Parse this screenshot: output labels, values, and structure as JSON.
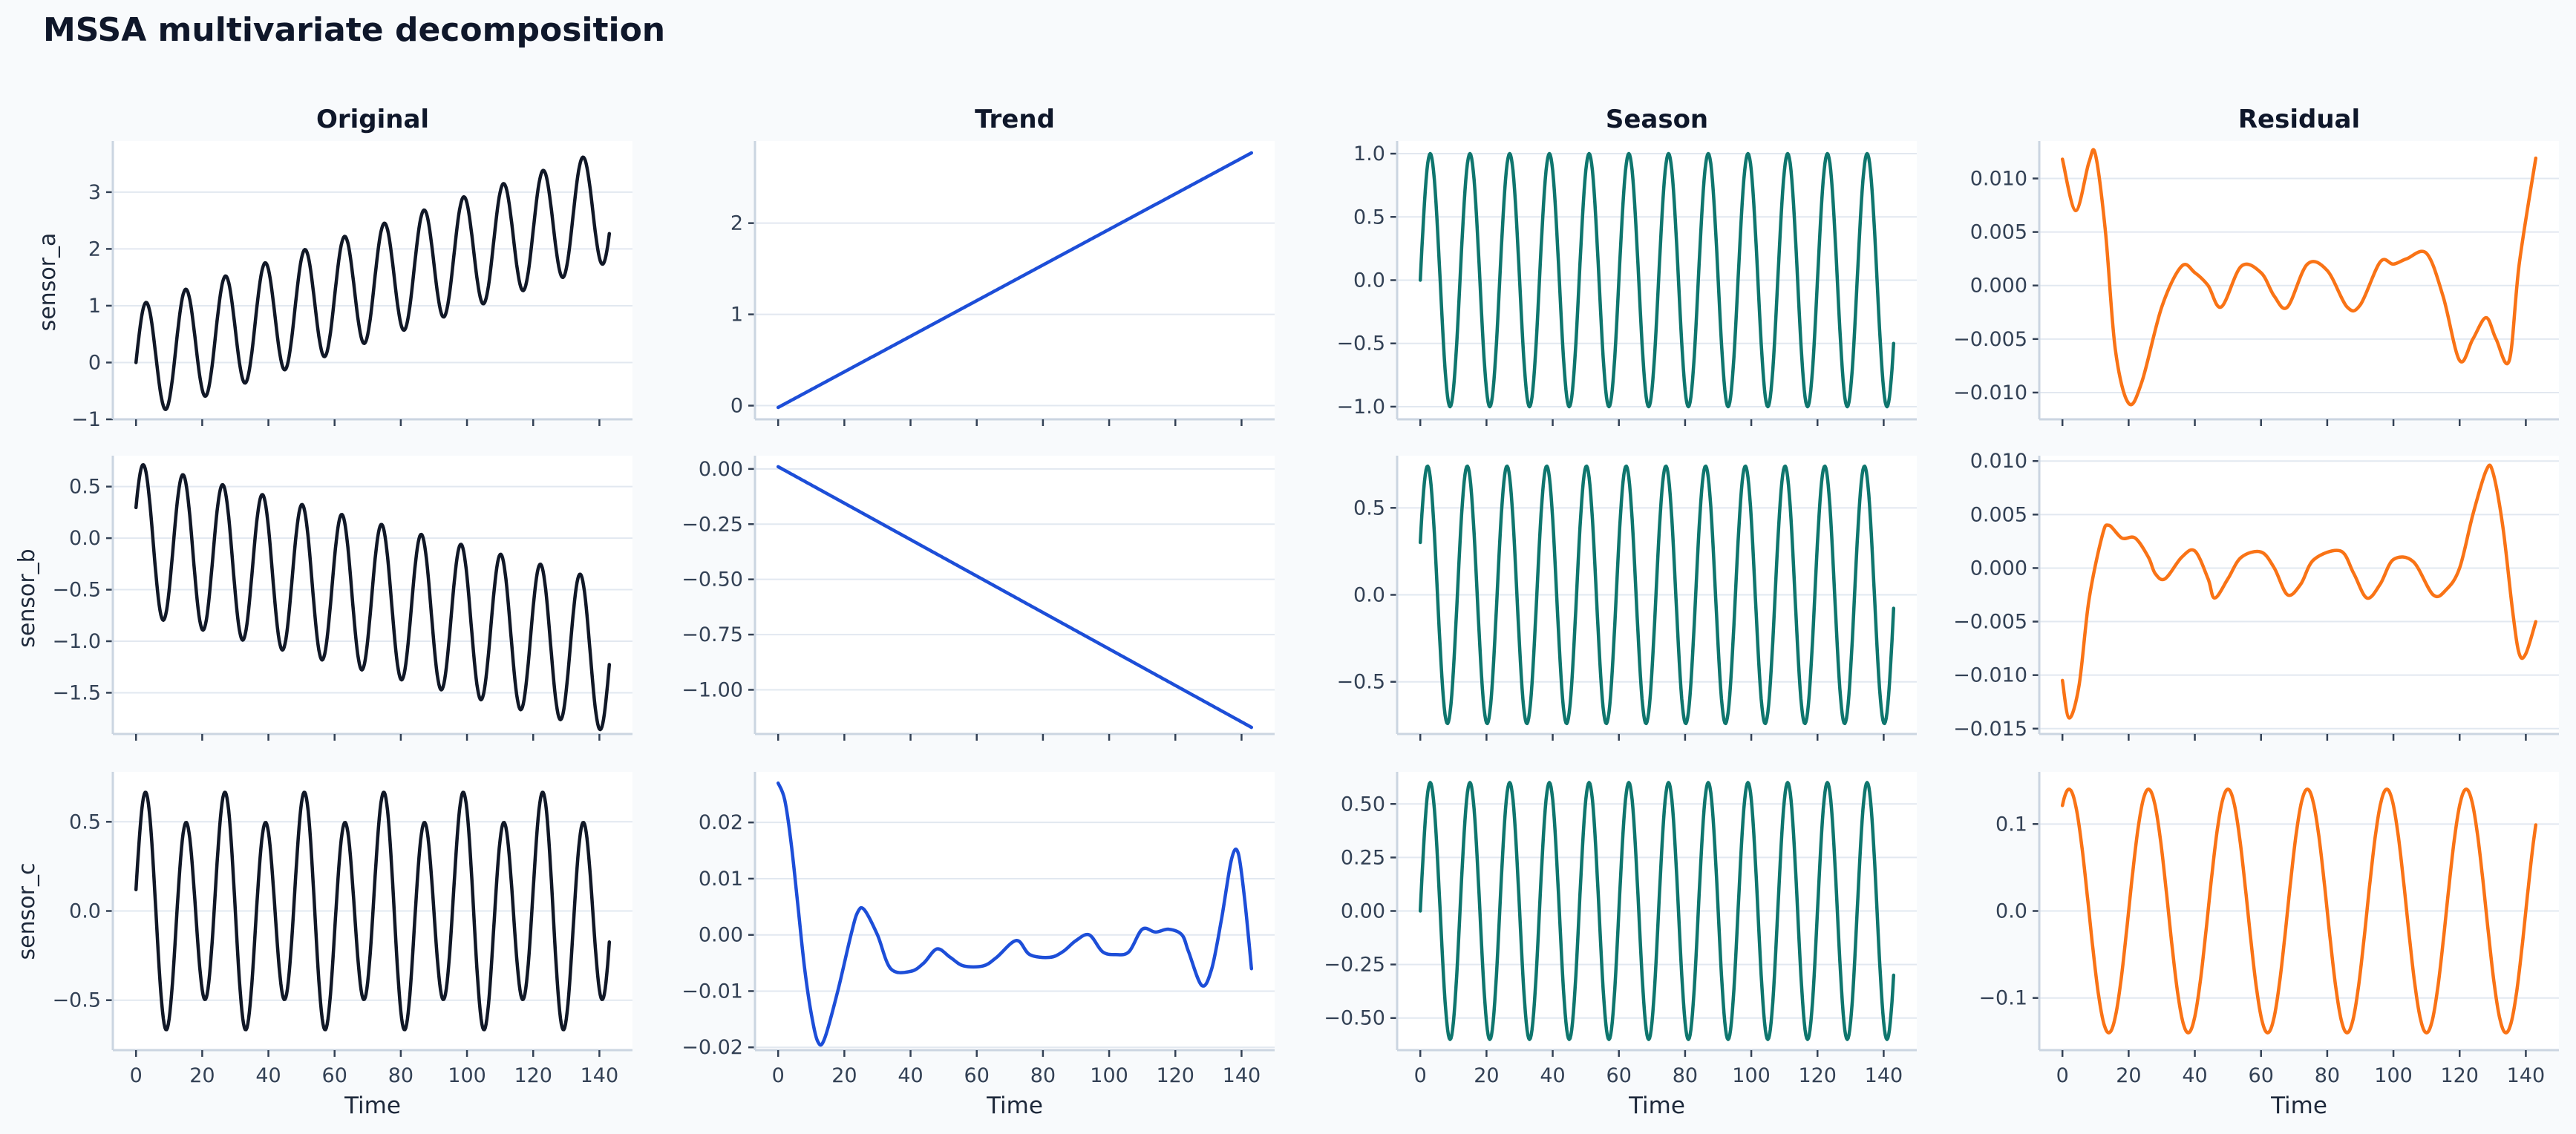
{
  "title": "MSSA multivariate decomposition",
  "columns": [
    "Original",
    "Trend",
    "Season",
    "Residual"
  ],
  "rows": [
    "sensor_a",
    "sensor_b",
    "sensor_c"
  ],
  "xlabel": "Time",
  "colors": {
    "Original": "#111827",
    "Trend": "#1d4ed8",
    "Season": "#0f766e",
    "Residual": "#f97316"
  },
  "chart_data": {
    "type": "line",
    "layout": "grid 3x4, shared x axis",
    "x_range": [
      0,
      143
    ],
    "xlim": [
      -7,
      150
    ],
    "xticks": [
      0,
      20,
      40,
      60,
      80,
      100,
      120,
      140
    ],
    "grid": "horizontal",
    "panels": [
      {
        "row": "sensor_a",
        "column": "Original",
        "ylim": [
          -1.0,
          3.9
        ],
        "yticks": [
          -1,
          0,
          1,
          2,
          3
        ],
        "ytick_labels": [
          "−1",
          "0",
          "1",
          "2",
          "3"
        ],
        "model": "trend_season",
        "trend_start": 0.0,
        "trend_end": 2.77,
        "amplitude": 1.0,
        "period": 12,
        "phase_deg": 0
      },
      {
        "row": "sensor_a",
        "column": "Trend",
        "ylim": [
          -0.15,
          2.9
        ],
        "yticks": [
          0,
          1,
          2
        ],
        "ytick_labels": [
          "0",
          "1",
          "2"
        ],
        "model": "linear",
        "start": -0.02,
        "end": 2.77
      },
      {
        "row": "sensor_a",
        "column": "Season",
        "ylim": [
          -1.1,
          1.1
        ],
        "yticks": [
          -1.0,
          -0.5,
          0.0,
          0.5,
          1.0
        ],
        "ytick_labels": [
          "−1.0",
          "−0.5",
          "0.0",
          "0.5",
          "1.0"
        ],
        "model": "sine",
        "amplitude": 1.0,
        "period": 12,
        "phase_deg": 0
      },
      {
        "row": "sensor_a",
        "column": "Residual",
        "ylim": [
          -0.0125,
          0.0135
        ],
        "yticks": [
          -0.01,
          -0.005,
          0.0,
          0.005,
          0.01
        ],
        "ytick_labels": [
          "−0.010",
          "−0.005",
          "0.000",
          "0.005",
          "0.010"
        ],
        "points": [
          [
            0,
            0.0118
          ],
          [
            4,
            0.007
          ],
          [
            8,
            0.0115
          ],
          [
            10,
            0.0122
          ],
          [
            13,
            0.005
          ],
          [
            16,
            -0.006
          ],
          [
            20,
            -0.011
          ],
          [
            24,
            -0.009
          ],
          [
            30,
            -0.002
          ],
          [
            36,
            0.0018
          ],
          [
            40,
            0.0012
          ],
          [
            44,
            0.0
          ],
          [
            48,
            -0.002
          ],
          [
            54,
            0.0018
          ],
          [
            60,
            0.0012
          ],
          [
            64,
            -0.001
          ],
          [
            68,
            -0.002
          ],
          [
            74,
            0.002
          ],
          [
            80,
            0.0014
          ],
          [
            86,
            -0.002
          ],
          [
            90,
            -0.0018
          ],
          [
            96,
            0.0022
          ],
          [
            100,
            0.002
          ],
          [
            104,
            0.0025
          ],
          [
            110,
            0.003
          ],
          [
            115,
            -0.001
          ],
          [
            120,
            -0.007
          ],
          [
            124,
            -0.005
          ],
          [
            128,
            -0.003
          ],
          [
            131,
            -0.005
          ],
          [
            135,
            -0.007
          ],
          [
            138,
            0.002
          ],
          [
            143,
            0.0119
          ]
        ]
      },
      {
        "row": "sensor_b",
        "column": "Original",
        "ylim": [
          -1.9,
          0.8
        ],
        "yticks": [
          -1.5,
          -1.0,
          -0.5,
          0.0,
          0.5
        ],
        "ytick_labels": [
          "−1.5",
          "−1.0",
          "−0.5",
          "0.0",
          "0.5"
        ],
        "model": "trend_season",
        "trend_start": 0.0,
        "trend_end": -1.15,
        "amplitude": 0.73,
        "period": 12,
        "phase_deg": 24
      },
      {
        "row": "sensor_b",
        "column": "Trend",
        "ylim": [
          -1.2,
          0.06
        ],
        "yticks": [
          -1.0,
          -0.75,
          -0.5,
          -0.25,
          0.0
        ],
        "ytick_labels": [
          "−1.00",
          "−0.75",
          "−0.50",
          "−0.25",
          "0.00"
        ],
        "model": "linear",
        "start": 0.01,
        "end": -1.17
      },
      {
        "row": "sensor_b",
        "column": "Season",
        "ylim": [
          -0.8,
          0.8
        ],
        "yticks": [
          -0.5,
          0.0,
          0.5
        ],
        "ytick_labels": [
          "−0.5",
          "0.0",
          "0.5"
        ],
        "model": "sine",
        "amplitude": 0.74,
        "period": 12,
        "phase_deg": 24
      },
      {
        "row": "sensor_b",
        "column": "Residual",
        "ylim": [
          -0.0155,
          0.0105
        ],
        "yticks": [
          -0.015,
          -0.01,
          -0.005,
          0.0,
          0.005,
          0.01
        ],
        "ytick_labels": [
          "−0.015",
          "−0.010",
          "−0.005",
          "0.000",
          "0.005",
          "0.010"
        ],
        "points": [
          [
            0,
            -0.0105
          ],
          [
            2,
            -0.014
          ],
          [
            5,
            -0.011
          ],
          [
            8,
            -0.003
          ],
          [
            12,
            0.003
          ],
          [
            14,
            0.004
          ],
          [
            18,
            0.0028
          ],
          [
            22,
            0.0028
          ],
          [
            26,
            0.001
          ],
          [
            28,
            -0.0005
          ],
          [
            31,
            -0.001
          ],
          [
            36,
            0.001
          ],
          [
            40,
            0.0016
          ],
          [
            44,
            -0.001
          ],
          [
            46,
            -0.0028
          ],
          [
            50,
            -0.001
          ],
          [
            54,
            0.001
          ],
          [
            60,
            0.0015
          ],
          [
            64,
            0.0
          ],
          [
            68,
            -0.0025
          ],
          [
            72,
            -0.0015
          ],
          [
            76,
            0.0008
          ],
          [
            84,
            0.0016
          ],
          [
            88,
            -0.0005
          ],
          [
            92,
            -0.0028
          ],
          [
            96,
            -0.0015
          ],
          [
            100,
            0.0008
          ],
          [
            106,
            0.0006
          ],
          [
            112,
            -0.0025
          ],
          [
            116,
            -0.002
          ],
          [
            120,
            0.0
          ],
          [
            124,
            0.005
          ],
          [
            128,
            0.0091
          ],
          [
            130,
            0.009
          ],
          [
            133,
            0.004
          ],
          [
            136,
            -0.004
          ],
          [
            138,
            -0.008
          ],
          [
            140,
            -0.008
          ],
          [
            143,
            -0.005
          ]
        ]
      },
      {
        "row": "sensor_c",
        "column": "Original",
        "ylim": [
          -0.78,
          0.78
        ],
        "yticks": [
          -0.5,
          0.0,
          0.5
        ],
        "ytick_labels": [
          "−0.5",
          "0.0",
          "0.5"
        ],
        "model": "sine_sum",
        "components": [
          {
            "amplitude": 0.58,
            "period": 12,
            "phase_deg": 0
          },
          {
            "amplitude": 0.12,
            "period": 24,
            "phase_deg": 90
          }
        ]
      },
      {
        "row": "sensor_c",
        "column": "Trend",
        "ylim": [
          -0.0205,
          0.029
        ],
        "yticks": [
          -0.02,
          -0.01,
          0.0,
          0.01,
          0.02
        ],
        "ytick_labels": [
          "−0.02",
          "−0.01",
          "0.00",
          "0.01",
          "0.02"
        ],
        "points": [
          [
            0,
            0.027
          ],
          [
            2,
            0.024
          ],
          [
            4,
            0.016
          ],
          [
            6,
            0.005
          ],
          [
            8,
            -0.006
          ],
          [
            10,
            -0.014
          ],
          [
            12,
            -0.019
          ],
          [
            14,
            -0.0185
          ],
          [
            18,
            -0.01
          ],
          [
            22,
            0.0
          ],
          [
            24,
            0.004
          ],
          [
            26,
            0.0045
          ],
          [
            30,
            0.0
          ],
          [
            34,
            -0.006
          ],
          [
            40,
            -0.0065
          ],
          [
            44,
            -0.005
          ],
          [
            48,
            -0.0025
          ],
          [
            52,
            -0.004
          ],
          [
            56,
            -0.0055
          ],
          [
            62,
            -0.0055
          ],
          [
            66,
            -0.004
          ],
          [
            72,
            -0.001
          ],
          [
            76,
            -0.0035
          ],
          [
            82,
            -0.004
          ],
          [
            86,
            -0.003
          ],
          [
            90,
            -0.001
          ],
          [
            94,
            0.0
          ],
          [
            98,
            -0.003
          ],
          [
            102,
            -0.0035
          ],
          [
            106,
            -0.003
          ],
          [
            110,
            0.001
          ],
          [
            114,
            0.0005
          ],
          [
            118,
            0.001
          ],
          [
            122,
            0.0
          ],
          [
            124,
            -0.003
          ],
          [
            128,
            -0.009
          ],
          [
            131,
            -0.006
          ],
          [
            134,
            0.003
          ],
          [
            137,
            0.0135
          ],
          [
            139,
            0.0145
          ],
          [
            141,
            0.006
          ],
          [
            143,
            -0.006
          ]
        ]
      },
      {
        "row": "sensor_c",
        "column": "Season",
        "ylim": [
          -0.65,
          0.65
        ],
        "yticks": [
          -0.5,
          -0.25,
          0.0,
          0.25,
          0.5
        ],
        "ytick_labels": [
          "−0.50",
          "−0.25",
          "0.00",
          "0.25",
          "0.50"
        ],
        "model": "sine",
        "amplitude": 0.6,
        "period": 12,
        "phase_deg": 0
      },
      {
        "row": "sensor_c",
        "column": "Residual",
        "ylim": [
          -0.16,
          0.16
        ],
        "yticks": [
          -0.1,
          0.0,
          0.1
        ],
        "ytick_labels": [
          "−0.1",
          "0.0",
          "0.1"
        ],
        "model": "sine",
        "amplitude": 0.14,
        "period": 24,
        "phase_deg": 60
      }
    ]
  }
}
